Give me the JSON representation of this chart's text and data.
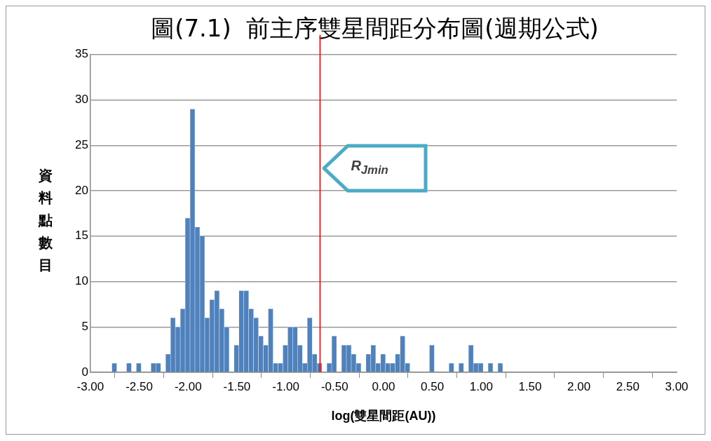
{
  "chart_data": {
    "type": "histogram",
    "title": "圖(7.1)  前主序雙星間距分布圖(週期公式)",
    "xlabel": "log(雙星間距(AU))",
    "ylabel": "資料點數目",
    "bins": [
      -2.78,
      -2.73,
      -2.68,
      -2.63,
      -2.58,
      -2.53,
      -2.48,
      -2.43,
      -2.38,
      -2.33,
      -2.28,
      -2.23,
      -2.18,
      -2.13,
      -2.08,
      -2.03,
      -1.98,
      -1.93,
      -1.88,
      -1.83,
      -1.78,
      -1.73,
      -1.68,
      -1.63,
      -1.58,
      -1.53,
      -1.48,
      -1.43,
      -1.38,
      -1.33,
      -1.28,
      -1.23,
      -1.18,
      -1.13,
      -1.08,
      -1.03,
      -0.98,
      -0.93,
      -0.88,
      -0.83,
      -0.78,
      -0.73,
      -0.68,
      -0.63,
      -0.58,
      -0.53,
      -0.48,
      -0.43,
      -0.38,
      -0.33,
      -0.28,
      -0.23,
      -0.18,
      -0.13,
      -0.08,
      -0.03,
      0.02,
      0.07,
      0.12,
      0.17,
      0.22,
      0.27,
      0.32,
      0.37,
      0.42,
      0.47,
      0.52,
      0.57,
      0.62,
      0.67,
      0.72,
      0.77,
      0.82,
      0.87,
      0.92,
      0.97,
      1.02,
      1.07,
      1.12,
      1.17,
      1.22
    ],
    "values": [
      1,
      0,
      0,
      1,
      0,
      1,
      0,
      0,
      1,
      1,
      0,
      2,
      6,
      5,
      7,
      17,
      29,
      16,
      15,
      6,
      8,
      9,
      7,
      5,
      0,
      3,
      9,
      9,
      7,
      6,
      4,
      3,
      7,
      1,
      1,
      3,
      5,
      5,
      3,
      1,
      6,
      2,
      1,
      0,
      1,
      4,
      0,
      3,
      3,
      2,
      1,
      0,
      2,
      3,
      1,
      2,
      1,
      1,
      2,
      4,
      1,
      0,
      0,
      0,
      0,
      3,
      0,
      0,
      0,
      1,
      0,
      1,
      0,
      3,
      1,
      1,
      0,
      1,
      0,
      1
    ],
    "color": "#4f81bd",
    "xlim": [
      -3,
      3
    ],
    "xticks": [
      {
        "value": -3,
        "label": "-3.00"
      },
      {
        "value": -2.5,
        "label": "-2.50"
      },
      {
        "value": -2,
        "label": "-2.00"
      },
      {
        "value": -1.5,
        "label": "-1.50"
      },
      {
        "value": -1,
        "label": "-1.00"
      },
      {
        "value": -0.5,
        "label": "-0.50"
      },
      {
        "value": 0,
        "label": "0.00"
      },
      {
        "value": 0.5,
        "label": "0.50"
      },
      {
        "value": 1,
        "label": "1.00"
      },
      {
        "value": 1.5,
        "label": "1.50"
      },
      {
        "value": 2,
        "label": "2.00"
      },
      {
        "value": 2.5,
        "label": "2.50"
      },
      {
        "value": 3,
        "label": "3.00"
      }
    ],
    "ylim": [
      0,
      35
    ],
    "yticks": [
      0,
      5,
      10,
      15,
      20,
      25,
      30,
      35
    ],
    "grid": "y",
    "ref_lines": [
      {
        "axis": "x",
        "value": -0.65,
        "label": "R$_{Jmin}$",
        "color": "#ff0000"
      }
    ]
  }
}
